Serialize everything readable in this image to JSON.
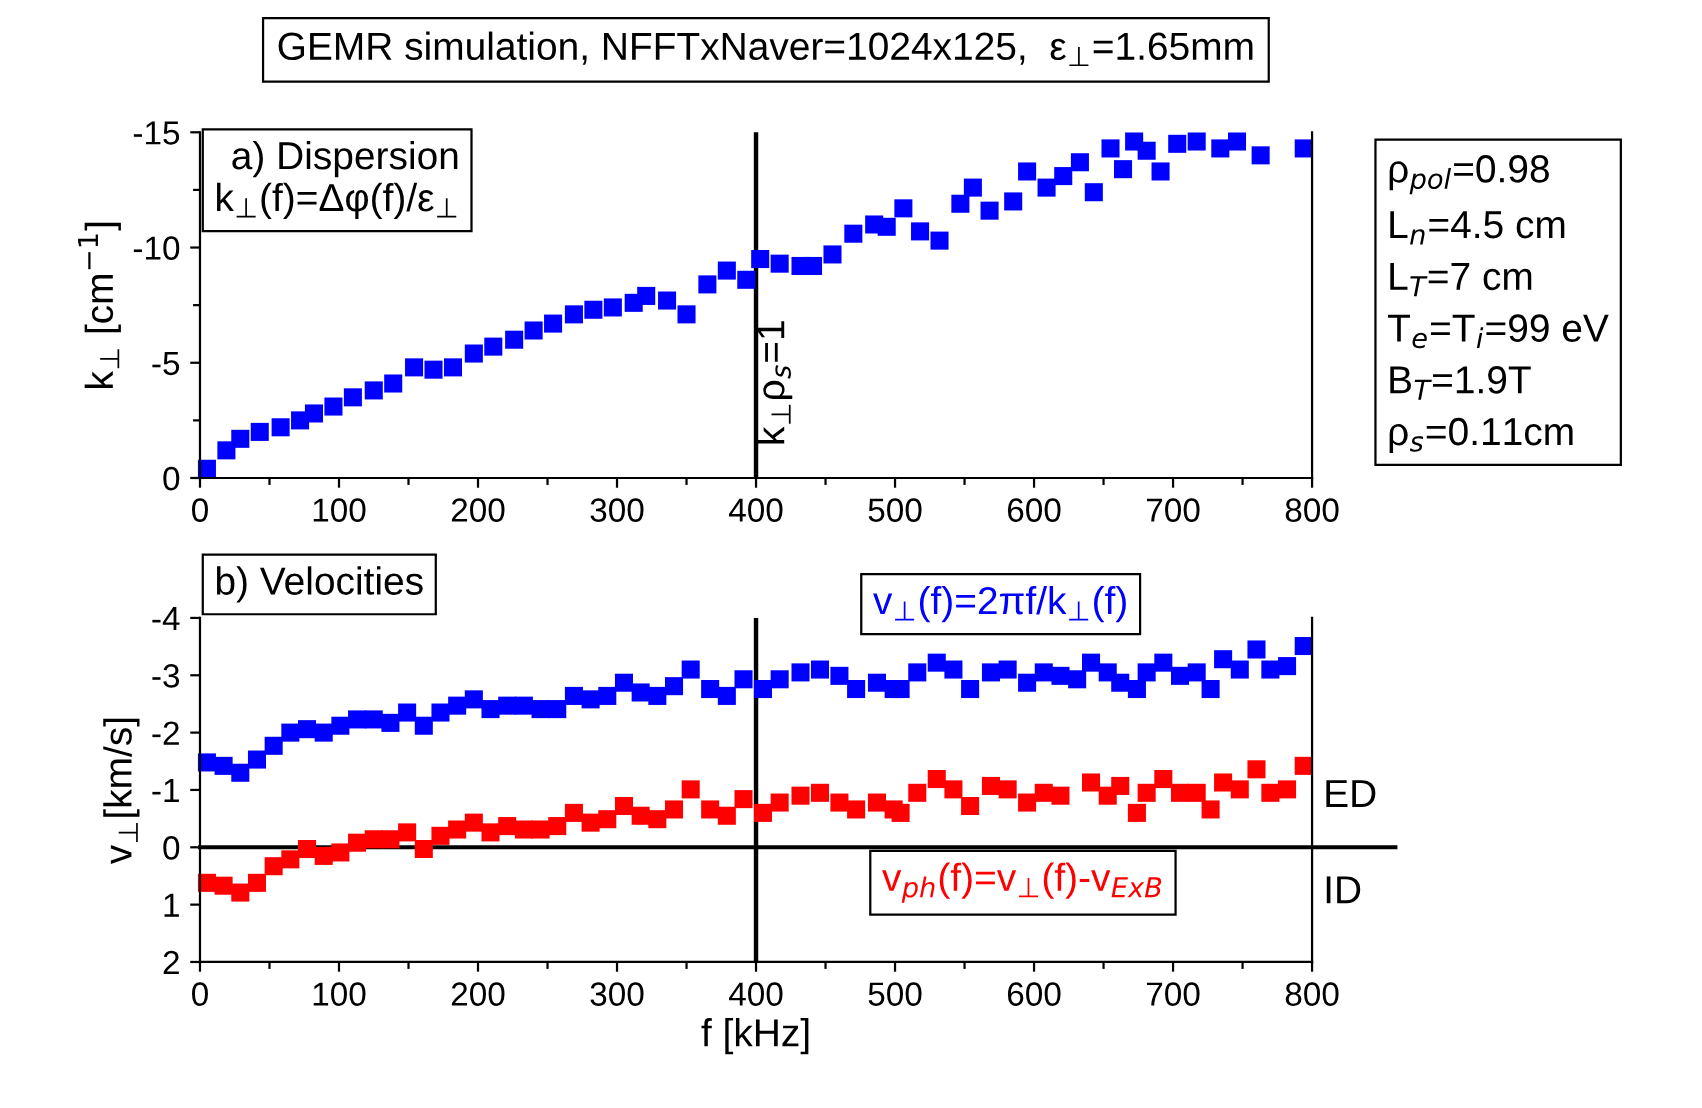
{
  "chart_data": [
    {
      "type": "scatter",
      "title": "GEMR simulation, NFFTxNaver=1024x125,  ε$_{⊥}$=1.65mm",
      "ylabel": "k$_{⊥}$ [cm$^{−1}$]",
      "annotations": [
        "a) Dispersion\nk$_{⊥}$(f)=Δφ(f)/ε$_{⊥}$",
        "ρ$_{pol}$=0.98\nL$_{n}$=4.5 cm\nL$_{T}$=7 cm\nT$_{e}$=T$_{i}$=99 eV\nB$_{T}$=1.9T\nρ$_{s}$=0.11cm",
        "k$_{⊥}$ρ$_{s}$=1"
      ],
      "series": [
        {
          "color": "#0000ff",
          "x": [
            5,
            19,
            29,
            43,
            58,
            72,
            82,
            96,
            110,
            125,
            139,
            154,
            168,
            182,
            197,
            211,
            226,
            240,
            254,
            269,
            283,
            297,
            312,
            321,
            336,
            350,
            365,
            379,
            393,
            403,
            417,
            432,
            441,
            455,
            470,
            485,
            494,
            506,
            518,
            532,
            547,
            556,
            568,
            585,
            595,
            609,
            621,
            633,
            643,
            655,
            664,
            672,
            681,
            691,
            703,
            717,
            734,
            746,
            763,
            794
          ],
          "values": [
            -0.4,
            -1.2,
            -1.7,
            -2.0,
            -2.2,
            -2.5,
            -2.8,
            -3.1,
            -3.5,
            -3.8,
            -4.1,
            -4.8,
            -4.7,
            -4.8,
            -5.4,
            -5.7,
            -6.0,
            -6.4,
            -6.7,
            -7.1,
            -7.3,
            -7.4,
            -7.6,
            -7.9,
            -7.7,
            -7.1,
            -8.4,
            -9.0,
            -8.6,
            -9.5,
            -9.3,
            -9.2,
            -9.2,
            -9.7,
            -10.6,
            -11.0,
            -10.9,
            -11.7,
            -10.7,
            -10.3,
            -11.9,
            -12.6,
            -11.6,
            -12.0,
            -13.3,
            -12.6,
            -13.1,
            -13.7,
            -12.4,
            -14.3,
            -13.4,
            -14.6,
            -14.2,
            -13.3,
            -14.5,
            -14.6,
            -14.3,
            -14.6,
            -14.0,
            -14.3
          ]
        }
      ],
      "xlim": [
        0,
        800
      ],
      "xticks": [
        0,
        {
          "value": 50,
          "label": null
        },
        100,
        {
          "value": 150,
          "label": null
        },
        200,
        {
          "value": 250,
          "label": null
        },
        300,
        {
          "value": 350,
          "label": null
        },
        400,
        {
          "value": 450,
          "label": null
        },
        500,
        {
          "value": 550,
          "label": null
        },
        600,
        {
          "value": 650,
          "label": null
        },
        700,
        {
          "value": 750,
          "label": null
        },
        800
      ],
      "ylim": [
        0,
        -15
      ],
      "yticks": [
        0,
        {
          "value": -2.5,
          "label": null
        },
        -5,
        {
          "value": -7.5,
          "label": null
        },
        -10,
        {
          "value": -12.5,
          "label": null
        },
        -15
      ],
      "ref_lines": [
        {
          "axis": "x",
          "value": 400,
          "color": "#000000"
        }
      ],
      "marker": "square",
      "legend": false,
      "grid": false
    },
    {
      "type": "scatter",
      "xlabel": "f [kHz]",
      "ylabel": "v$_{⊥}$[km/s]",
      "annotations": [
        "b) Velocities",
        "ED",
        "ID"
      ],
      "series": [
        {
          "name": "v$_{⊥}$(f)=2πf/k$_{⊥}$(f)",
          "color": "#0000ff",
          "x": [
            5,
            17,
            29,
            41,
            53,
            65,
            77,
            89,
            101,
            113,
            125,
            137,
            149,
            161,
            173,
            185,
            197,
            209,
            221,
            233,
            245,
            257,
            269,
            281,
            293,
            305,
            317,
            329,
            341,
            353,
            367,
            379,
            391,
            405,
            417,
            432,
            446,
            460,
            472,
            487,
            499,
            504,
            516,
            530,
            542,
            554,
            569,
            581,
            595,
            607,
            619,
            631,
            641,
            653,
            662,
            674,
            681,
            693,
            705,
            717,
            727,
            736,
            748,
            760,
            770,
            782,
            794
          ],
          "values": [
            -1.48,
            -1.42,
            -1.3,
            -1.53,
            -1.77,
            -2.0,
            -2.06,
            -2.0,
            -2.12,
            -2.23,
            -2.23,
            -2.17,
            -2.35,
            -2.12,
            -2.35,
            -2.47,
            -2.58,
            -2.41,
            -2.47,
            -2.47,
            -2.41,
            -2.41,
            -2.64,
            -2.58,
            -2.64,
            -2.87,
            -2.7,
            -2.64,
            -2.81,
            -3.1,
            -2.76,
            -2.64,
            -2.93,
            -2.76,
            -2.93,
            -3.05,
            -3.1,
            -2.99,
            -2.76,
            -2.87,
            -2.76,
            -2.76,
            -3.05,
            -3.22,
            -3.1,
            -2.76,
            -3.05,
            -3.1,
            -2.87,
            -3.05,
            -2.99,
            -2.93,
            -3.22,
            -3.05,
            -2.87,
            -2.76,
            -3.05,
            -3.22,
            -2.99,
            -3.05,
            -2.76,
            -3.28,
            -3.1,
            -3.45,
            -3.1,
            -3.16,
            -3.51
          ]
        },
        {
          "name": "v$_{ph}$(f)=v$_{⊥}$(f)-v$_{ExB}$",
          "color": "#ff0000",
          "x": [
            5,
            17,
            29,
            41,
            53,
            65,
            77,
            89,
            101,
            113,
            125,
            137,
            149,
            161,
            173,
            185,
            197,
            209,
            221,
            233,
            245,
            257,
            269,
            281,
            293,
            305,
            317,
            329,
            341,
            353,
            367,
            379,
            391,
            405,
            417,
            432,
            446,
            460,
            472,
            487,
            499,
            504,
            516,
            530,
            542,
            554,
            569,
            581,
            595,
            607,
            619,
            641,
            653,
            662,
            674,
            681,
            693,
            705,
            717,
            727,
            736,
            748,
            760,
            770,
            782,
            794
          ],
          "values": [
            0.62,
            0.67,
            0.79,
            0.62,
            0.33,
            0.21,
            0.03,
            0.15,
            0.09,
            -0.08,
            -0.14,
            -0.14,
            -0.26,
            0.03,
            -0.2,
            -0.31,
            -0.43,
            -0.26,
            -0.37,
            -0.31,
            -0.31,
            -0.37,
            -0.6,
            -0.43,
            -0.49,
            -0.72,
            -0.55,
            -0.49,
            -0.66,
            -1.01,
            -0.66,
            -0.55,
            -0.84,
            -0.6,
            -0.78,
            -0.9,
            -0.95,
            -0.78,
            -0.66,
            -0.78,
            -0.66,
            -0.6,
            -0.95,
            -1.19,
            -1.01,
            -0.72,
            -1.07,
            -1.01,
            -0.78,
            -0.95,
            -0.9,
            -1.13,
            -0.9,
            -1.07,
            -0.6,
            -0.95,
            -1.19,
            -0.95,
            -0.95,
            -0.66,
            -1.13,
            -1.01,
            -1.36,
            -0.95,
            -1.01,
            -1.42
          ]
        }
      ],
      "xlim": [
        0,
        800
      ],
      "xticks": [
        0,
        {
          "value": 50,
          "label": null
        },
        100,
        {
          "value": 150,
          "label": null
        },
        200,
        {
          "value": 250,
          "label": null
        },
        300,
        {
          "value": 350,
          "label": null
        },
        400,
        {
          "value": 450,
          "label": null
        },
        500,
        {
          "value": 550,
          "label": null
        },
        600,
        {
          "value": 650,
          "label": null
        },
        700,
        {
          "value": 750,
          "label": null
        },
        800
      ],
      "ylim": [
        2,
        -4
      ],
      "yticks": [
        2,
        1,
        0,
        -1,
        -2,
        -3,
        -4
      ],
      "ref_lines": [
        {
          "axis": "x",
          "value": 400,
          "color": "#000000"
        },
        {
          "axis": "y",
          "value": 0,
          "color": "#000000"
        }
      ],
      "marker": "square",
      "legend": false,
      "grid": false
    }
  ]
}
